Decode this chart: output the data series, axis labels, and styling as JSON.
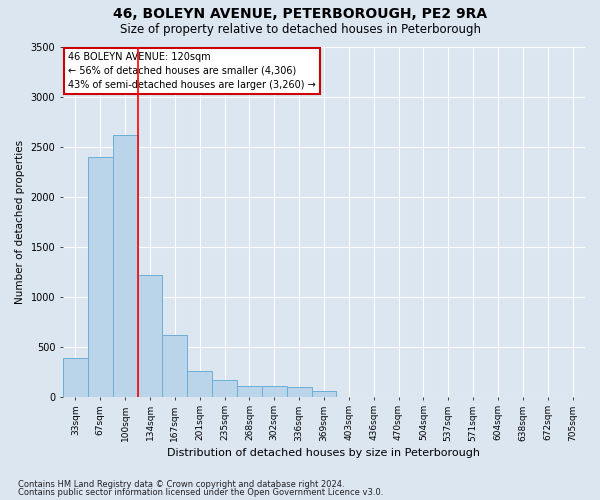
{
  "title": "46, BOLEYN AVENUE, PETERBOROUGH, PE2 9RA",
  "subtitle": "Size of property relative to detached houses in Peterborough",
  "xlabel": "Distribution of detached houses by size in Peterborough",
  "ylabel": "Number of detached properties",
  "footnote1": "Contains HM Land Registry data © Crown copyright and database right 2024.",
  "footnote2": "Contains public sector information licensed under the Open Government Licence v3.0.",
  "categories": [
    "33sqm",
    "67sqm",
    "100sqm",
    "134sqm",
    "167sqm",
    "201sqm",
    "235sqm",
    "268sqm",
    "302sqm",
    "336sqm",
    "369sqm",
    "403sqm",
    "436sqm",
    "470sqm",
    "504sqm",
    "537sqm",
    "571sqm",
    "604sqm",
    "638sqm",
    "672sqm",
    "705sqm"
  ],
  "values": [
    390,
    2400,
    2620,
    1220,
    620,
    260,
    170,
    110,
    110,
    100,
    60,
    0,
    0,
    0,
    0,
    0,
    0,
    0,
    0,
    0,
    0
  ],
  "bar_color": "#bad4ea",
  "bar_edge_color": "#6baed6",
  "red_line_x": 2.5,
  "annotation_text": "46 BOLEYN AVENUE: 120sqm\n← 56% of detached houses are smaller (4,306)\n43% of semi-detached houses are larger (3,260) →",
  "annotation_box_facecolor": "#ffffff",
  "annotation_box_edgecolor": "#cc0000",
  "ylim": [
    0,
    3500
  ],
  "yticks": [
    0,
    500,
    1000,
    1500,
    2000,
    2500,
    3000,
    3500
  ],
  "bg_color": "#dce6f1",
  "grid_color": "#ffffff",
  "title_fontsize": 10,
  "subtitle_fontsize": 8.5,
  "ylabel_fontsize": 7.5,
  "xlabel_fontsize": 8,
  "tick_fontsize": 6.5,
  "annot_fontsize": 7,
  "footnote_fontsize": 6
}
